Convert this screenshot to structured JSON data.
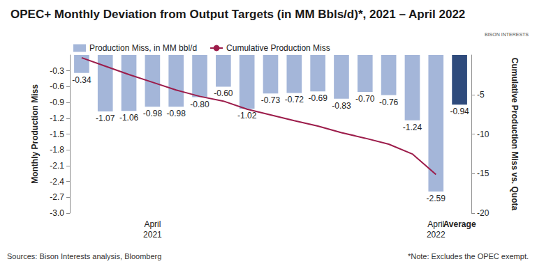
{
  "chart_data": {
    "type": "bar",
    "title": "OPEC+ Monthly Deviation from Output Targets (in MM Bbls/d)*, 2021 – April 2022",
    "categories": [
      null,
      null,
      null,
      "April 2021",
      null,
      null,
      null,
      null,
      null,
      null,
      null,
      null,
      null,
      null,
      null,
      "April 2022",
      "Average"
    ],
    "series": [
      {
        "name": "Production Miss, in MM bbl/d",
        "type": "bar",
        "colors": [
          "#a4b6d9",
          "#a4b6d9",
          "#a4b6d9",
          "#a4b6d9",
          "#a4b6d9",
          "#a4b6d9",
          "#a4b6d9",
          "#a4b6d9",
          "#a4b6d9",
          "#a4b6d9",
          "#a4b6d9",
          "#a4b6d9",
          "#a4b6d9",
          "#a4b6d9",
          "#a4b6d9",
          "#a4b6d9",
          "#2f4b7c"
        ],
        "values": [
          -0.34,
          -1.07,
          -1.06,
          -0.98,
          -0.98,
          -0.8,
          -0.6,
          -1.02,
          -0.73,
          -0.72,
          -0.69,
          -0.83,
          -0.7,
          -0.76,
          -1.24,
          -2.59,
          -0.94
        ],
        "value_labels": [
          "-0.34",
          "-1.07",
          "-1.06",
          "-0.98",
          "-0.98",
          "-0.80",
          "-0.60",
          "-1.02",
          "-0.73",
          "-0.72",
          "-0.69",
          "-0.83",
          "-0.70",
          "-0.76",
          "-1.24",
          "-2.59",
          "-0.94"
        ],
        "data_labels": true
      },
      {
        "name": "Cumulative Production Miss",
        "type": "line",
        "axis": "y2",
        "color": "#9c1c4a",
        "marker": "none",
        "line_style": "solid",
        "values": [
          -0.34,
          -1.41,
          -2.47,
          -3.45,
          -4.43,
          -5.23,
          -5.83,
          -6.85,
          -7.58,
          -8.3,
          -8.99,
          -9.82,
          -10.52,
          -11.28,
          -12.52,
          -15.11,
          null
        ]
      }
    ],
    "y_label": "Monthly Production Miss",
    "y2_label": "Cumulative Production Miss vs. Quota",
    "ylim": [
      -3,
      0
    ],
    "yticks": [
      -0.3,
      -0.6,
      -0.9,
      -1.2,
      -1.5,
      -1.8,
      -2.1,
      -2.4,
      -2.7,
      {
        "value": -3,
        "label": "-3.0"
      }
    ],
    "y2lim": [
      -20,
      0
    ],
    "y2ticks": [
      -5,
      -10,
      -15,
      -20
    ],
    "grid": false,
    "legend": "top-left",
    "source": "Sources: Bison Interests analysis, Bloomberg",
    "note": "*Note: Excludes the OPEC exempt.",
    "logo": "BISON INTERESTS"
  }
}
